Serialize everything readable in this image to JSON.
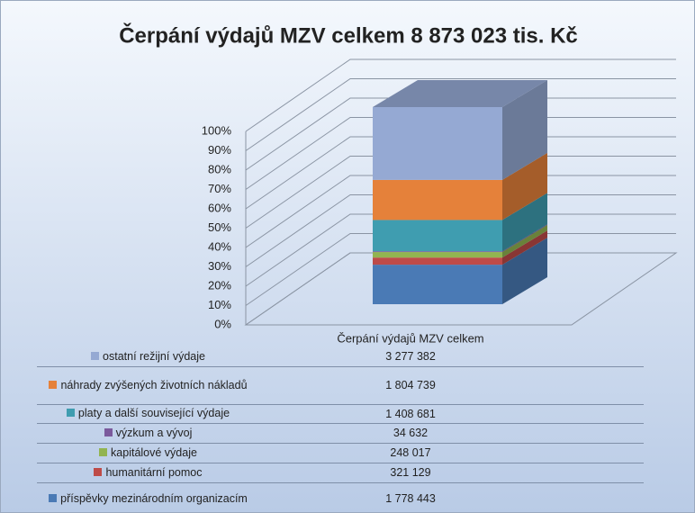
{
  "chart_data": {
    "type": "bar3d_stacked_percent",
    "title": "Čerpání výdajů MZV celkem 8 873 023 tis. Kč",
    "categories": [
      "Čerpání výdajů MZV celkem"
    ],
    "ylim": [
      0,
      100
    ],
    "yticks": [
      {
        "value": 0,
        "label": "0%"
      },
      {
        "value": 10,
        "label": "10%"
      },
      {
        "value": 20,
        "label": "20%"
      },
      {
        "value": 30,
        "label": "30%"
      },
      {
        "value": 40,
        "label": "40%"
      },
      {
        "value": 50,
        "label": "50%"
      },
      {
        "value": 60,
        "label": "60%"
      },
      {
        "value": 70,
        "label": "70%"
      },
      {
        "value": 80,
        "label": "80%"
      },
      {
        "value": 90,
        "label": "90%"
      },
      {
        "value": 100,
        "label": "100%"
      }
    ],
    "grid": true,
    "series": [
      {
        "name": "ostatní režijní výdaje",
        "color": "#95a9d3",
        "values": [
          3277382
        ],
        "value_labels": [
          "3 277 382"
        ]
      },
      {
        "name": "náhrady zvýšených životních nákladů",
        "color": "#e5813a",
        "values": [
          1804739
        ],
        "value_labels": [
          "1 804 739"
        ]
      },
      {
        "name": "platy a další související výdaje",
        "color": "#3f9db0",
        "values": [
          1408681
        ],
        "value_labels": [
          "1 408 681"
        ]
      },
      {
        "name": "výzkum a vývoj",
        "color": "#7b5a9c",
        "values": [
          34632
        ],
        "value_labels": [
          "34 632"
        ]
      },
      {
        "name": "kapitálové výdaje",
        "color": "#92b450",
        "values": [
          248017
        ],
        "value_labels": [
          "248 017"
        ]
      },
      {
        "name": "humanitární pomoc",
        "color": "#be4b48",
        "values": [
          321129
        ],
        "value_labels": [
          "321 129"
        ]
      },
      {
        "name": "příspěvky mezinárodním organizacím",
        "color": "#4a7ab5",
        "values": [
          1778443
        ],
        "value_labels": [
          "1 778 443"
        ]
      }
    ]
  }
}
